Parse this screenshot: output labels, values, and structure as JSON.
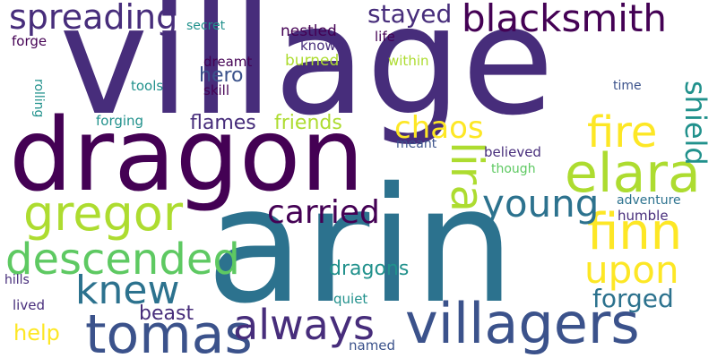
{
  "palette": {
    "dark_purple": "#440154",
    "indigo": "#472d7b",
    "slate_blue": "#3b528b",
    "steel_blue": "#2c728e",
    "teal": "#21918c",
    "sea_green": "#28ae80",
    "green": "#5ec962",
    "lime": "#addc30",
    "yellow": "#fde725"
  },
  "words": [
    {
      "id": "village",
      "text": "village"
    },
    {
      "id": "arin",
      "text": "arin"
    },
    {
      "id": "dragon",
      "text": "dragon"
    },
    {
      "id": "villagers",
      "text": "villagers"
    },
    {
      "id": "tomas",
      "text": "tomas"
    },
    {
      "id": "blacksmith",
      "text": "blacksmith"
    },
    {
      "id": "gregor",
      "text": "gregor"
    },
    {
      "id": "elara",
      "text": "elara"
    },
    {
      "id": "finn",
      "text": "finn"
    },
    {
      "id": "lira",
      "text": "lira"
    },
    {
      "id": "descended",
      "text": "descended"
    },
    {
      "id": "always",
      "text": "always"
    },
    {
      "id": "knew",
      "text": "knew"
    },
    {
      "id": "spreading",
      "text": "spreading"
    },
    {
      "id": "upon",
      "text": "upon"
    },
    {
      "id": "fire",
      "text": "fire"
    },
    {
      "id": "carried",
      "text": "carried"
    },
    {
      "id": "young",
      "text": "young"
    },
    {
      "id": "chaos",
      "text": "chaos"
    },
    {
      "id": "shield",
      "text": "shield"
    },
    {
      "id": "stayed",
      "text": "stayed"
    },
    {
      "id": "forged",
      "text": "forged"
    },
    {
      "id": "dragons",
      "text": "dragons"
    },
    {
      "id": "flames",
      "text": "flames"
    },
    {
      "id": "beast",
      "text": "beast"
    },
    {
      "id": "help",
      "text": "help"
    },
    {
      "id": "friends",
      "text": "friends"
    },
    {
      "id": "hero",
      "text": "hero"
    },
    {
      "id": "nestled",
      "text": "nestled"
    },
    {
      "id": "known",
      "text": "known"
    },
    {
      "id": "burned",
      "text": "burned"
    },
    {
      "id": "dreamt",
      "text": "dreamt"
    },
    {
      "id": "skill",
      "text": "skill"
    },
    {
      "id": "secret",
      "text": "secret"
    },
    {
      "id": "forge",
      "text": "forge"
    },
    {
      "id": "tools",
      "text": "tools"
    },
    {
      "id": "forging",
      "text": "forging"
    },
    {
      "id": "rolling",
      "text": "rolling"
    },
    {
      "id": "life",
      "text": "life"
    },
    {
      "id": "within",
      "text": "within"
    },
    {
      "id": "time",
      "text": "time"
    },
    {
      "id": "meant",
      "text": "meant"
    },
    {
      "id": "believed",
      "text": "believed"
    },
    {
      "id": "though",
      "text": "though"
    },
    {
      "id": "adventure",
      "text": "adventure"
    },
    {
      "id": "humble",
      "text": "humble"
    },
    {
      "id": "hills",
      "text": "hills"
    },
    {
      "id": "lived",
      "text": "lived"
    },
    {
      "id": "quiet",
      "text": "quiet"
    },
    {
      "id": "named",
      "text": "named"
    }
  ]
}
